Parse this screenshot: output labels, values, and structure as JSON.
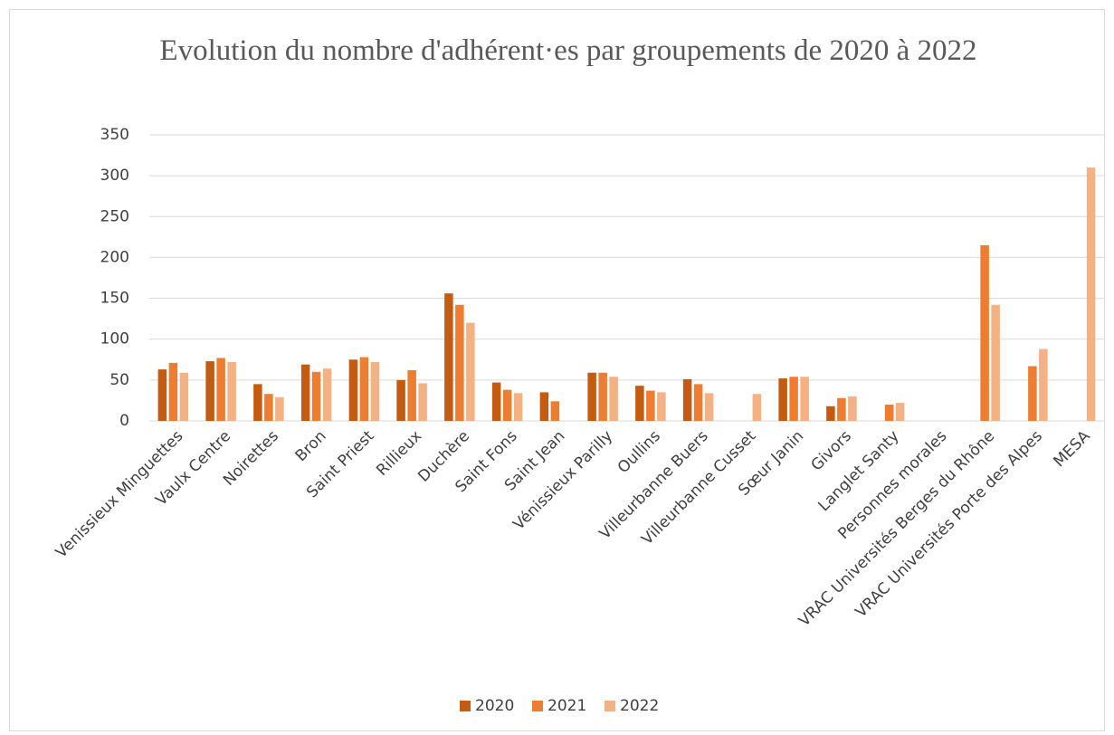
{
  "chart_data": {
    "type": "bar",
    "title": "Evolution du nombre d'adhérent·es par groupements de 2020 à 2022",
    "categories": [
      "Venissieux Minguettes",
      "Vaulx Centre",
      "Noirettes",
      "Bron",
      "Saint Priest",
      "Rillieux",
      "Duchère",
      "Saint Fons",
      "Saint Jean",
      "Vénissieux Parilly",
      "Oullins",
      "Villeurbanne Buers",
      "Villeurbanne Cusset",
      "Sœur Janin",
      "Givors",
      "Langlet Santy",
      "Personnes morales",
      "VRAC Universités Berges du Rhône",
      "VRAC Universités Porte des Alpes",
      "MESA"
    ],
    "series": [
      {
        "name": "2020",
        "color": "#c55a11",
        "values": [
          63,
          73,
          45,
          69,
          75,
          50,
          156,
          47,
          35,
          59,
          43,
          51,
          null,
          52,
          18,
          null,
          null,
          null,
          null,
          null
        ]
      },
      {
        "name": "2021",
        "color": "#ed7d31",
        "values": [
          71,
          77,
          33,
          60,
          78,
          62,
          142,
          38,
          24,
          59,
          37,
          45,
          null,
          54,
          28,
          20,
          null,
          215,
          67,
          null
        ]
      },
      {
        "name": "2022",
        "color": "#f4b183",
        "values": [
          59,
          72,
          29,
          64,
          72,
          46,
          120,
          34,
          null,
          54,
          35,
          34,
          33,
          54,
          30,
          22,
          null,
          142,
          88,
          310
        ]
      }
    ],
    "ylim": [
      0,
      350
    ],
    "yticks": [
      0,
      50,
      100,
      150,
      200,
      250,
      300,
      350
    ],
    "grid": true,
    "legend": "bottom"
  }
}
